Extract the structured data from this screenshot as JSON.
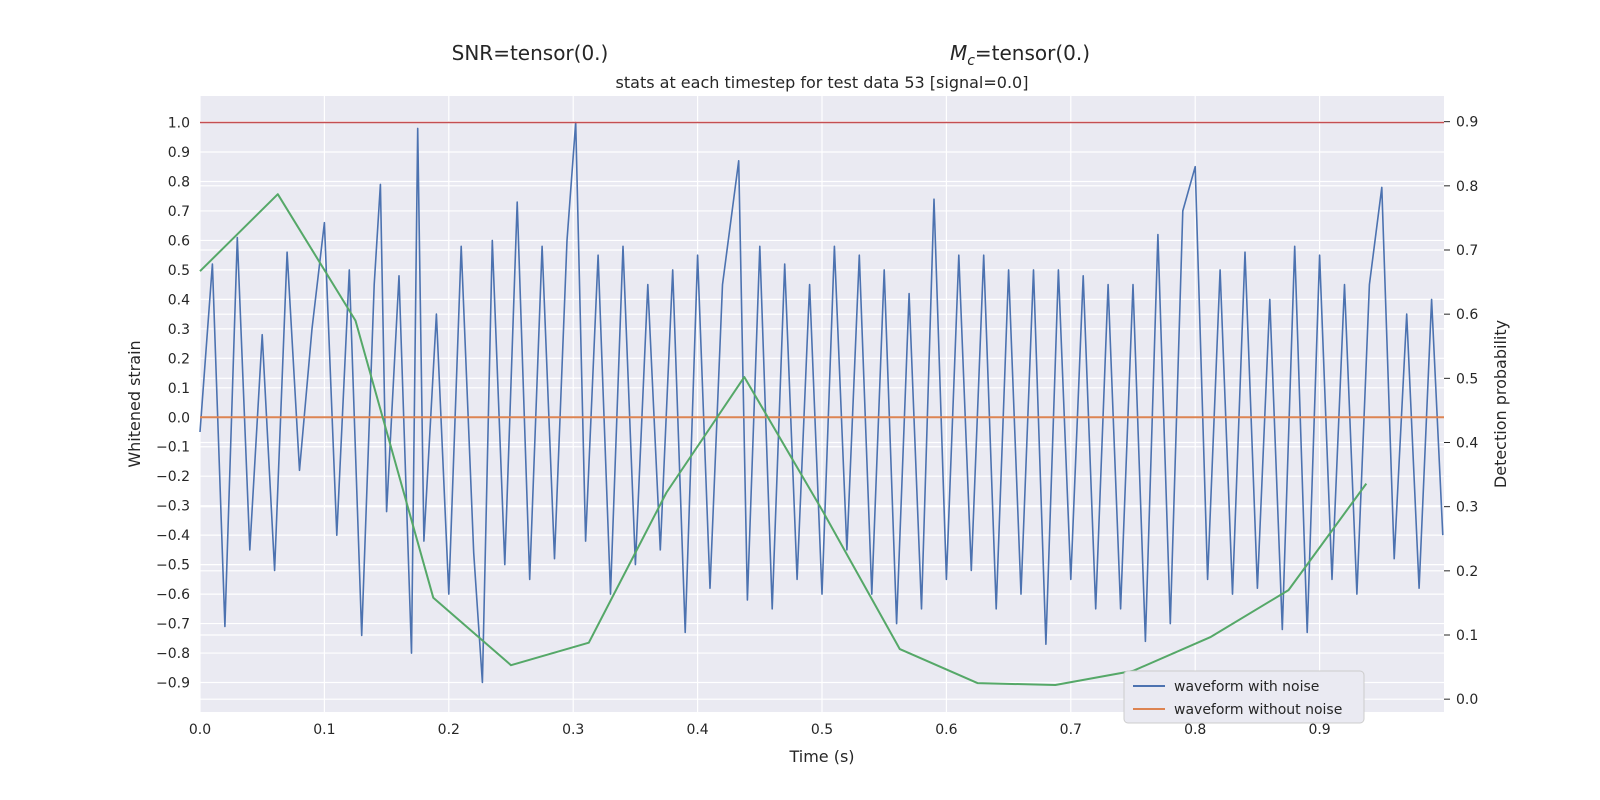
{
  "chart_data": {
    "type": "line",
    "suptitle_left": "SNR=tensor(0.)",
    "suptitle_right_prefix": "M",
    "suptitle_right_sub": "c",
    "suptitle_right_suffix": "=tensor(0.)",
    "title": "stats at each timestep for test data 53 [signal=0.0]",
    "xlabel": "Time (s)",
    "ylabel_left": "Whitened strain",
    "ylabel_right": "Detection probability",
    "xlim": [
      0.0,
      1.0
    ],
    "ylim_left": [
      -1.0,
      1.09
    ],
    "ylim_right": [
      -0.02,
      0.94
    ],
    "x_ticks": [
      0.0,
      0.1,
      0.2,
      0.3,
      0.4,
      0.5,
      0.6,
      0.7,
      0.8,
      0.9
    ],
    "x_tick_labels": [
      "0.0",
      "0.1",
      "0.2",
      "0.3",
      "0.4",
      "0.5",
      "0.6",
      "0.7",
      "0.8",
      "0.9"
    ],
    "y_left_ticks": [
      1.0,
      0.9,
      0.8,
      0.7,
      0.6,
      0.5,
      0.4,
      0.3,
      0.2,
      0.1,
      0.0,
      -0.1,
      -0.2,
      -0.3,
      -0.4,
      -0.5,
      -0.6,
      -0.7,
      -0.8,
      -0.9
    ],
    "y_left_tick_labels": [
      "1.0",
      "0.9",
      "0.8",
      "0.7",
      "0.6",
      "0.5",
      "0.4",
      "0.3",
      "0.2",
      "0.1",
      "0.0",
      "−0.1",
      "−0.2",
      "−0.3",
      "−0.4",
      "−0.5",
      "−0.6",
      "−0.7",
      "−0.8",
      "−0.9"
    ],
    "y_right_ticks": [
      0.9,
      0.8,
      0.7,
      0.6,
      0.5,
      0.4,
      0.3,
      0.2,
      0.1,
      0.0
    ],
    "y_right_tick_labels": [
      "0.9",
      "0.8",
      "0.7",
      "0.6",
      "0.5",
      "0.4",
      "0.3",
      "0.2",
      "0.1",
      "0.0"
    ],
    "grid": true,
    "legend_position": "lower-right",
    "colors": {
      "background": "#eaeaf2",
      "grid": "#ffffff",
      "noisy": "#4c72b0",
      "clean": "#dd8452",
      "detection": "#55a868",
      "threshold": "#c44e52"
    },
    "series": [
      {
        "name": "waveform with noise",
        "axis": "left",
        "x": [
          0.0,
          0.01,
          0.02,
          0.03,
          0.04,
          0.05,
          0.06,
          0.07,
          0.08,
          0.09,
          0.1,
          0.11,
          0.12,
          0.13,
          0.14,
          0.145,
          0.15,
          0.16,
          0.17,
          0.175,
          0.18,
          0.19,
          0.2,
          0.21,
          0.22,
          0.227,
          0.235,
          0.245,
          0.255,
          0.265,
          0.275,
          0.285,
          0.295,
          0.302,
          0.31,
          0.32,
          0.33,
          0.34,
          0.35,
          0.36,
          0.37,
          0.38,
          0.39,
          0.4,
          0.41,
          0.42,
          0.433,
          0.44,
          0.45,
          0.46,
          0.47,
          0.48,
          0.49,
          0.5,
          0.51,
          0.52,
          0.53,
          0.54,
          0.55,
          0.56,
          0.57,
          0.58,
          0.59,
          0.6,
          0.61,
          0.62,
          0.63,
          0.64,
          0.65,
          0.66,
          0.67,
          0.68,
          0.69,
          0.7,
          0.71,
          0.72,
          0.73,
          0.74,
          0.75,
          0.76,
          0.77,
          0.78,
          0.79,
          0.8,
          0.81,
          0.82,
          0.83,
          0.84,
          0.85,
          0.86,
          0.87,
          0.88,
          0.89,
          0.9,
          0.91,
          0.92,
          0.93,
          0.94,
          0.95,
          0.96,
          0.97,
          0.98,
          0.99,
          0.999
        ],
        "y": [
          -0.05,
          0.52,
          -0.71,
          0.61,
          -0.45,
          0.28,
          -0.52,
          0.56,
          -0.18,
          0.3,
          0.66,
          -0.4,
          0.5,
          -0.74,
          0.45,
          0.79,
          -0.32,
          0.48,
          -0.8,
          0.98,
          -0.42,
          0.35,
          -0.6,
          0.58,
          -0.46,
          -0.9,
          0.6,
          -0.5,
          0.73,
          -0.55,
          0.58,
          -0.48,
          0.6,
          1.0,
          -0.42,
          0.55,
          -0.6,
          0.58,
          -0.5,
          0.45,
          -0.45,
          0.5,
          -0.73,
          0.55,
          -0.58,
          0.45,
          0.87,
          -0.62,
          0.58,
          -0.65,
          0.52,
          -0.55,
          0.45,
          -0.6,
          0.58,
          -0.45,
          0.55,
          -0.6,
          0.5,
          -0.7,
          0.42,
          -0.65,
          0.74,
          -0.55,
          0.55,
          -0.52,
          0.55,
          -0.65,
          0.5,
          -0.6,
          0.5,
          -0.77,
          0.5,
          -0.55,
          0.48,
          -0.65,
          0.45,
          -0.65,
          0.45,
          -0.76,
          0.62,
          -0.7,
          0.7,
          0.85,
          -0.55,
          0.5,
          -0.6,
          0.56,
          -0.58,
          0.4,
          -0.72,
          0.58,
          -0.73,
          0.55,
          -0.55,
          0.45,
          -0.6,
          0.45,
          0.78,
          -0.48,
          0.35,
          -0.58,
          0.4,
          -0.4
        ]
      },
      {
        "name": "waveform without noise",
        "axis": "left",
        "x": [
          0.0,
          1.0
        ],
        "y": [
          0.0,
          0.0
        ]
      },
      {
        "axis": "right",
        "x": [
          0.0,
          0.0625,
          0.125,
          0.1875,
          0.25,
          0.3125,
          0.375,
          0.4375,
          0.5,
          0.5625,
          0.625,
          0.6875,
          0.75,
          0.8125,
          0.875,
          0.9375
        ],
        "y": [
          0.667,
          0.787,
          0.59,
          0.158,
          0.053,
          0.088,
          0.322,
          0.502,
          0.295,
          0.078,
          0.025,
          0.022,
          0.044,
          0.097,
          0.17,
          0.336
        ]
      },
      {
        "axis": "left",
        "x": [
          0.0,
          1.0
        ],
        "y": [
          1.0,
          1.0
        ]
      }
    ]
  }
}
